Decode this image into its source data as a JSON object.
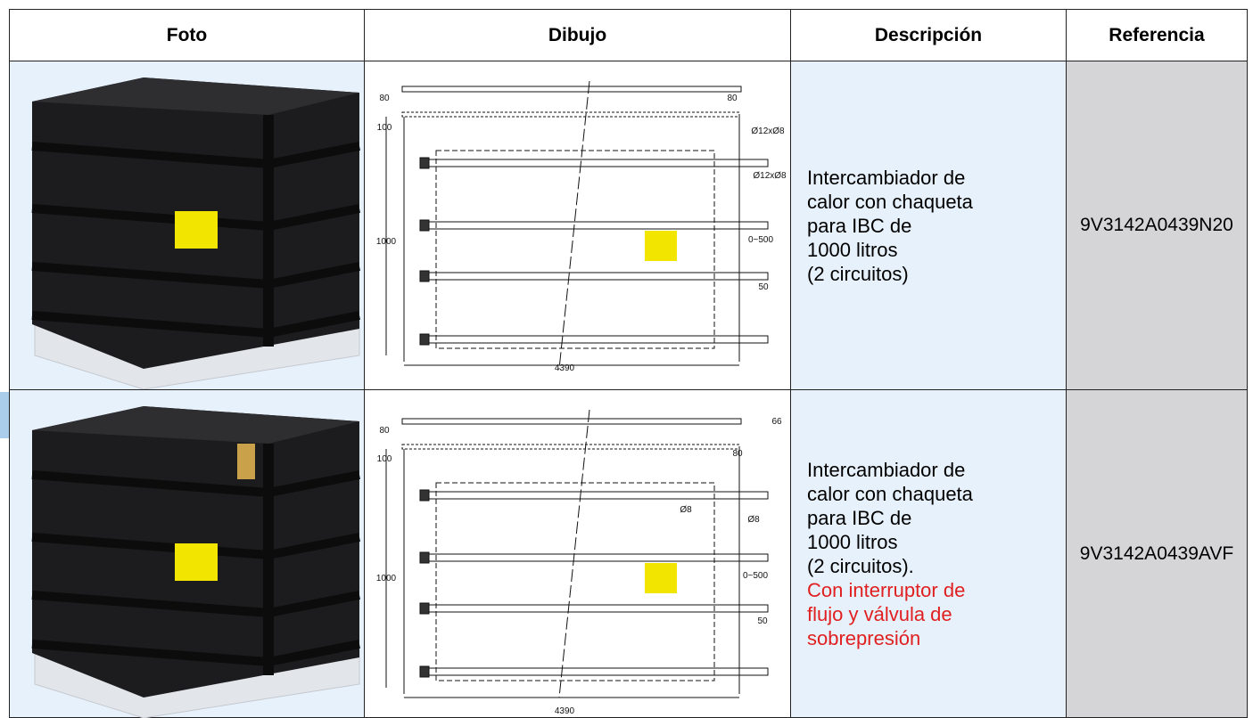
{
  "table": {
    "headers": [
      "Foto",
      "Dibujo",
      "Descripción",
      "Referencia"
    ],
    "rows": [
      {
        "description": [
          "Intercambiador de",
          "calor con chaqueta",
          "para IBC de",
          "1000 litros",
          "(2 circuitos)"
        ],
        "note": [],
        "reference": "9V3142A0439N20",
        "drawing_labels": [
          "80",
          "80",
          "100",
          "Ø12xØ8",
          "Ø12xØ8",
          "1000",
          "0~500",
          "50",
          "4390"
        ]
      },
      {
        "description": [
          "Intercambiador de",
          "calor con chaqueta",
          "para IBC de",
          "1000 litros",
          "(2 circuitos)."
        ],
        "note": [
          "Con interruptor de",
          "flujo y válvula de",
          "sobrepresión"
        ],
        "reference": "9V3142A0439AVF",
        "drawing_labels": [
          "80",
          "66",
          "100",
          "80",
          "Ø8",
          "Ø8",
          "1000",
          "0~500",
          "50",
          "4390"
        ]
      }
    ]
  }
}
